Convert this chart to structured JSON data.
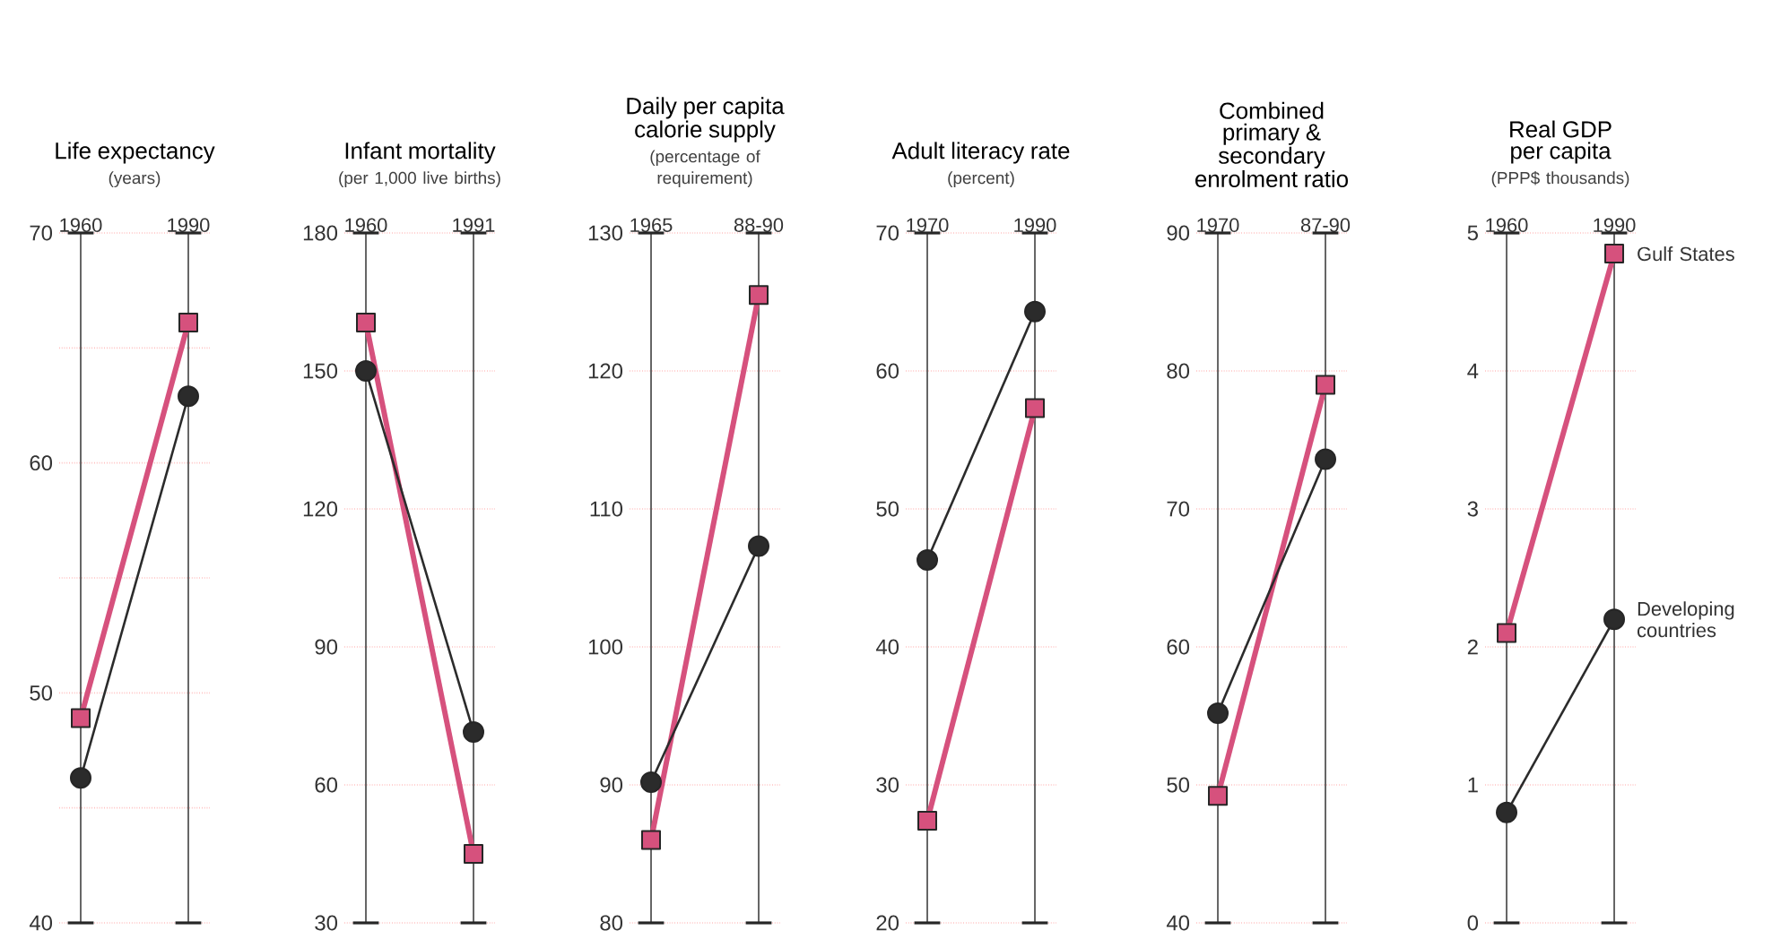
{
  "chart_data": [
    {
      "type": "line",
      "title": "Life expectancy",
      "subtitle": "(years)",
      "categories": [
        "1960",
        "1990"
      ],
      "ylim": [
        40,
        70
      ],
      "yticks": [
        40,
        {
          "value": 45,
          "label": null
        },
        50,
        {
          "value": 55,
          "label": null
        },
        60,
        {
          "value": 65,
          "label": null
        },
        70
      ],
      "grid": true,
      "series": [
        {
          "color": "#d6517d",
          "marker": "square",
          "values": [
            48.9,
            66.1
          ]
        },
        {
          "color": "#2b2b2b",
          "marker": "circle",
          "values": [
            46.3,
            62.9
          ]
        }
      ]
    },
    {
      "type": "line",
      "title": "Infant mortality",
      "subtitle": "(per 1,000 live births)",
      "categories": [
        "1960",
        "1991"
      ],
      "ylim": [
        30,
        180
      ],
      "yticks": [
        30,
        60,
        90,
        120,
        150,
        180
      ],
      "grid": true,
      "series": [
        {
          "color": "#d6517d",
          "marker": "square",
          "values": [
            160.5,
            45
          ]
        },
        {
          "color": "#2b2b2b",
          "marker": "circle",
          "values": [
            150,
            71.5
          ]
        }
      ]
    },
    {
      "type": "line",
      "title": "Daily per capita calorie supply",
      "subtitle": "(percentage of requirement)",
      "categories": [
        "1965",
        "88-90"
      ],
      "ylim": [
        80,
        130
      ],
      "yticks": [
        80,
        90,
        100,
        110,
        120,
        130
      ],
      "grid": true,
      "series": [
        {
          "color": "#d6517d",
          "marker": "square",
          "values": [
            86,
            125.5
          ]
        },
        {
          "color": "#2b2b2b",
          "marker": "circle",
          "values": [
            90.2,
            107.3
          ]
        }
      ]
    },
    {
      "type": "line",
      "title": "Adult literacy rate",
      "subtitle": "(percent)",
      "categories": [
        "1970",
        "1990"
      ],
      "ylim": [
        20,
        70
      ],
      "yticks": [
        20,
        30,
        40,
        50,
        60,
        70
      ],
      "grid": true,
      "series": [
        {
          "color": "#d6517d",
          "marker": "square",
          "values": [
            27.4,
            57.3
          ]
        },
        {
          "color": "#2b2b2b",
          "marker": "circle",
          "values": [
            46.3,
            64.3
          ]
        }
      ]
    },
    {
      "type": "line",
      "title": "Combined primary & secondary enrolment ratio",
      "categories": [
        "1970",
        "87-90"
      ],
      "ylim": [
        40,
        90
      ],
      "yticks": [
        40,
        50,
        60,
        70,
        80,
        90
      ],
      "grid": true,
      "series": [
        {
          "color": "#d6517d",
          "marker": "square",
          "values": [
            49.2,
            79.0
          ]
        },
        {
          "color": "#2b2b2b",
          "marker": "circle",
          "values": [
            55.2,
            73.6
          ]
        }
      ]
    },
    {
      "type": "line",
      "title": "Real GDP per capita",
      "subtitle": "(PPP$ thousands)",
      "categories": [
        "1960",
        "1990"
      ],
      "ylim": [
        0,
        5
      ],
      "yticks": [
        0,
        1,
        2,
        3,
        4,
        5
      ],
      "grid": true,
      "series": [
        {
          "name": "Gulf States",
          "color": "#d6517d",
          "marker": "square",
          "values": [
            2.1,
            4.85
          ]
        },
        {
          "name": "Developing countries",
          "color": "#2b2b2b",
          "marker": "circle",
          "values": [
            0.8,
            2.2
          ]
        }
      ]
    }
  ]
}
